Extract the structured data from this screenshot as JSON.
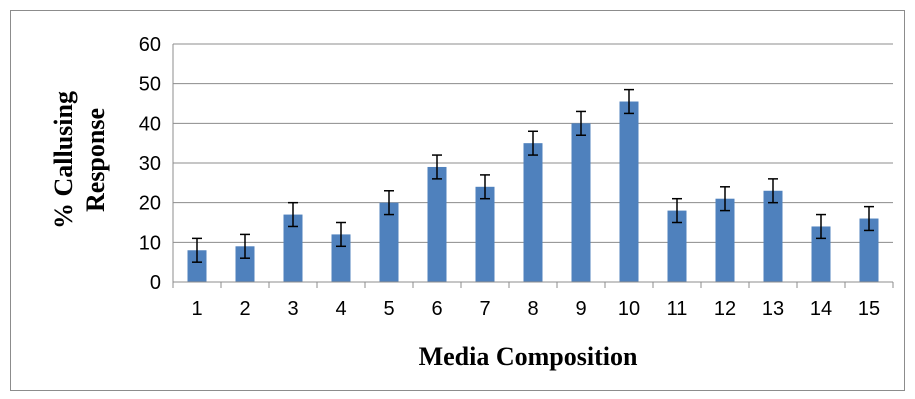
{
  "chart_data": {
    "type": "bar",
    "title": "",
    "xlabel": "Media Composition",
    "ylabel_lines": [
      "% Callusing",
      "Response"
    ],
    "categories": [
      "1",
      "2",
      "3",
      "4",
      "5",
      "6",
      "7",
      "8",
      "9",
      "10",
      "11",
      "12",
      "13",
      "14",
      "15"
    ],
    "series": [
      {
        "values": [
          8,
          9,
          17,
          12,
          20,
          29,
          24,
          35,
          40,
          45.5,
          18,
          21,
          23,
          14,
          16
        ],
        "error": [
          3,
          3,
          3,
          3,
          3,
          3,
          3,
          3,
          3,
          3,
          3,
          3,
          3,
          3,
          3
        ]
      }
    ],
    "ylim": [
      0,
      60
    ],
    "yticks": [
      0,
      10,
      20,
      30,
      40,
      50,
      60
    ],
    "grid": true,
    "legend": "none",
    "colors": {
      "bar": "#4f81bd",
      "grid": "#8c8c8c",
      "error": "#000000"
    }
  }
}
